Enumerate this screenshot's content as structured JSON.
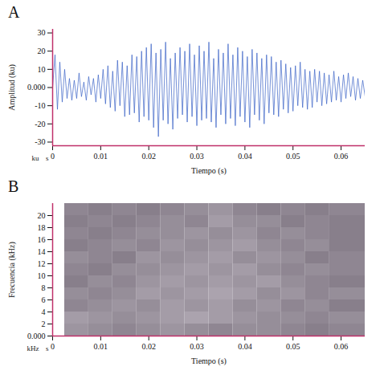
{
  "chart_data": [
    {
      "type": "line",
      "panel_label": "A",
      "x_label": "Tiempo (s)",
      "y_label": "Amplitud (ku)",
      "x_unit": "s",
      "y_unit": "ku",
      "color": "#3a62c6",
      "xlim": [
        0,
        0.065
      ],
      "ylim": [
        -32,
        32
      ],
      "xticks": [
        0,
        0.01,
        0.02,
        0.03,
        0.04,
        0.05,
        0.06
      ],
      "yticks": [
        -30,
        -20,
        -10,
        {
          "value": 0,
          "label": "0.000"
        },
        10,
        20,
        30
      ],
      "x": [
        0,
        0.0005,
        0.001,
        0.0015,
        0.002,
        0.0025,
        0.003,
        0.0035,
        0.004,
        0.0045,
        0.005,
        0.0055,
        0.006,
        0.0065,
        0.007,
        0.0075,
        0.008,
        0.0085,
        0.009,
        0.0095,
        0.01,
        0.0105,
        0.011,
        0.0115,
        0.012,
        0.0125,
        0.013,
        0.0135,
        0.014,
        0.0145,
        0.015,
        0.0155,
        0.016,
        0.0165,
        0.017,
        0.0175,
        0.018,
        0.0185,
        0.019,
        0.0195,
        0.02,
        0.0205,
        0.021,
        0.0215,
        0.022,
        0.0225,
        0.023,
        0.0235,
        0.024,
        0.0245,
        0.025,
        0.0255,
        0.026,
        0.0265,
        0.027,
        0.0275,
        0.028,
        0.0285,
        0.029,
        0.0295,
        0.03,
        0.0305,
        0.031,
        0.0315,
        0.032,
        0.0325,
        0.033,
        0.0335,
        0.034,
        0.0345,
        0.035,
        0.0355,
        0.036,
        0.0365,
        0.037,
        0.0375,
        0.038,
        0.0385,
        0.039,
        0.0395,
        0.04,
        0.0405,
        0.041,
        0.0415,
        0.042,
        0.0425,
        0.043,
        0.0435,
        0.044,
        0.0445,
        0.045,
        0.0455,
        0.046,
        0.0465,
        0.047,
        0.0475,
        0.048,
        0.0485,
        0.049,
        0.0495,
        0.05,
        0.0505,
        0.051,
        0.0515,
        0.052,
        0.0525,
        0.053,
        0.0535,
        0.054,
        0.0545,
        0.055,
        0.0555,
        0.056,
        0.0565,
        0.057,
        0.0575,
        0.058,
        0.0585,
        0.059,
        0.0595,
        0.06,
        0.0605,
        0.061,
        0.0615,
        0.062,
        0.0625,
        0.063,
        0.0635,
        0.064,
        0.0645,
        0.065
      ],
      "values": [
        0,
        18,
        -12,
        14,
        -8,
        10,
        -6,
        5,
        -7,
        4,
        -6,
        8,
        -5,
        3,
        -7,
        6,
        -4,
        5,
        -8,
        7,
        -6,
        10,
        -9,
        12,
        -11,
        9,
        -13,
        15,
        -10,
        14,
        -16,
        12,
        -15,
        18,
        -14,
        17,
        -19,
        20,
        -16,
        22,
        -18,
        24,
        -22,
        19,
        -27,
        21,
        -18,
        25,
        -20,
        16,
        -23,
        19,
        -17,
        22,
        -15,
        20,
        -19,
        24,
        -16,
        18,
        -21,
        23,
        -18,
        20,
        -17,
        25,
        -19,
        16,
        -22,
        21,
        -15,
        19,
        -20,
        24,
        -17,
        18,
        -21,
        22,
        -16,
        20,
        -19,
        17,
        -22,
        21,
        -15,
        19,
        -18,
        16,
        -20,
        18,
        -14,
        17,
        -15,
        14,
        -16,
        15,
        -12,
        13,
        -14,
        11,
        -13,
        12,
        -10,
        14,
        -11,
        10,
        -12,
        9,
        -11,
        10,
        -8,
        9,
        -10,
        8,
        -9,
        7,
        -8,
        9,
        -7,
        6,
        -8,
        7,
        -6,
        8,
        -5,
        6,
        -7,
        5,
        -6,
        4,
        -5
      ]
    },
    {
      "type": "heatmap",
      "panel_label": "B",
      "x_label": "Tiempo (s)",
      "y_label": "Frecuencia (kHz)",
      "x_unit": "s",
      "y_unit": "kHz",
      "xlim": [
        0,
        0.065
      ],
      "ylim": [
        0,
        22
      ],
      "xticks": [
        0,
        0.01,
        0.02,
        0.03,
        0.04,
        0.05,
        0.06
      ],
      "yticks": [
        {
          "value": 0,
          "label": "0.000"
        },
        2,
        4,
        6,
        8,
        10,
        12,
        14,
        16,
        18,
        20
      ],
      "time_bins": [
        0.0025,
        0.0075,
        0.0125,
        0.0175,
        0.0225,
        0.0275,
        0.0325,
        0.0375,
        0.0425,
        0.0475,
        0.0525,
        0.0575,
        0.065
      ],
      "freq_bins": [
        0,
        2,
        4,
        6,
        8,
        10,
        12,
        14,
        16,
        18,
        20,
        22
      ],
      "zlim": [
        0,
        1
      ],
      "cells": [
        [
          0.55,
          0.5,
          0.45,
          0.5,
          0.55,
          0.5,
          0.45,
          0.5,
          0.5,
          0.45,
          0.4,
          0.45
        ],
        [
          0.6,
          0.55,
          0.5,
          0.55,
          0.6,
          0.65,
          0.6,
          0.55,
          0.5,
          0.5,
          0.45,
          0.5
        ],
        [
          0.45,
          0.5,
          0.55,
          0.5,
          0.6,
          0.55,
          0.6,
          0.5,
          0.55,
          0.45,
          0.5,
          0.4
        ],
        [
          0.5,
          0.45,
          0.5,
          0.6,
          0.55,
          0.6,
          0.65,
          0.6,
          0.5,
          0.55,
          0.45,
          0.5
        ],
        [
          0.4,
          0.5,
          0.45,
          0.55,
          0.6,
          0.55,
          0.6,
          0.55,
          0.6,
          0.5,
          0.45,
          0.4
        ],
        [
          0.45,
          0.4,
          0.5,
          0.5,
          0.55,
          0.6,
          0.55,
          0.6,
          0.5,
          0.45,
          0.5,
          0.45
        ],
        [
          0.5,
          0.45,
          0.4,
          0.55,
          0.5,
          0.55,
          0.6,
          0.5,
          0.55,
          0.5,
          0.4,
          0.45
        ],
        [
          0.4,
          0.45,
          0.5,
          0.45,
          0.55,
          0.5,
          0.55,
          0.6,
          0.5,
          0.45,
          0.5,
          0.4
        ],
        [
          0.45,
          0.4,
          0.45,
          0.5,
          0.5,
          0.55,
          0.5,
          0.55,
          0.45,
          0.5,
          0.45,
          0.4
        ],
        [
          0.4,
          0.45,
          0.4,
          0.45,
          0.5,
          0.45,
          0.6,
          0.5,
          0.5,
          0.4,
          0.45,
          0.4
        ],
        [
          0.45,
          0.4,
          0.45,
          0.4,
          0.45,
          0.5,
          0.55,
          0.45,
          0.4,
          0.45,
          0.4,
          0.45
        ]
      ]
    }
  ]
}
